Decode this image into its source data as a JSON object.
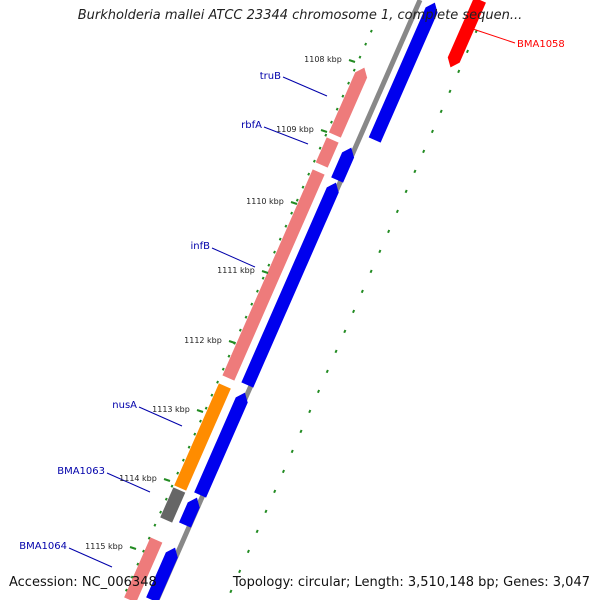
{
  "title": "Burkholderia mallei ATCC 23344 chromosome 1, complete sequen...",
  "ticks": [
    "1108 kbp",
    "1109 kbp",
    "1110 kbp",
    "1111 kbp",
    "1112 kbp",
    "1113 kbp",
    "1114 kbp",
    "1115 kbp"
  ],
  "gene_labels": [
    {
      "name": "BMA1058",
      "color": "#ff0000"
    },
    {
      "name": "truB",
      "color": "#0000aa"
    },
    {
      "name": "rbfA",
      "color": "#0000aa"
    },
    {
      "name": "infB",
      "color": "#0000aa"
    },
    {
      "name": "nusA",
      "color": "#0000aa"
    },
    {
      "name": "BMA1063",
      "color": "#0000aa"
    },
    {
      "name": "BMA1064",
      "color": "#0000aa"
    }
  ],
  "colors": {
    "cds_forward": "#ee7b7b",
    "cds_reverse": "#0000ee",
    "highlight_gene": "#ff0000",
    "nusA_gene": "#ff8c00",
    "other_gene": "#666666",
    "backbone": "#888888",
    "gc_track": "#228b22"
  },
  "footer": {
    "accession": "Accession: NC_006348",
    "summary": "Topology: circular; Length: 3,510,148 bp; Genes: 3,047"
  }
}
